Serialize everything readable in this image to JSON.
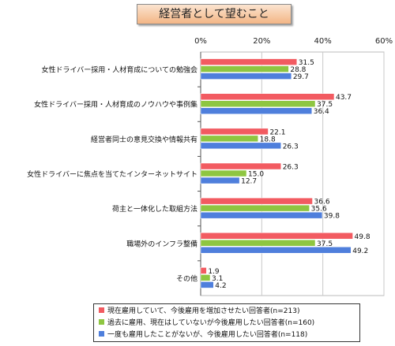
{
  "title": "経営者として望むこと",
  "chart_data": {
    "type": "bar",
    "orientation": "horizontal",
    "categories": [
      "女性ドライバー採用・人材育成についての勉強会",
      "女性ドライバー採用・人材育成のノウハウや事例集",
      "経営者同士の意見交換や情報共有",
      "女性ドライバーに焦点を当てたインターネットサイト",
      "荷主と一体化した取組方法",
      "職場外のインフラ整備",
      "その他"
    ],
    "series": [
      {
        "name": "現在雇用していて、今後雇用を増加させたい回答者(n=213)",
        "color": "#f25b61",
        "values": [
          31.5,
          43.7,
          22.1,
          26.3,
          36.6,
          49.8,
          1.9
        ]
      },
      {
        "name": "過去に雇用、現在はしていないが今後雇用したい回答者(n=160)",
        "color": "#8ec641",
        "values": [
          28.8,
          37.5,
          18.8,
          15.0,
          35.6,
          37.5,
          3.1
        ]
      },
      {
        "name": "一度も雇用したことがないが、今後雇用したい回答者(n=118)",
        "color": "#4f7fdc",
        "values": [
          29.7,
          36.4,
          26.3,
          12.7,
          39.8,
          49.2,
          4.2
        ]
      }
    ],
    "value_labels": [
      [
        "31.5",
        "43.7",
        "22.1",
        "26.3",
        "36.6",
        "49.8",
        "1.9"
      ],
      [
        "28.8",
        "37.5",
        "18.8",
        "15.0",
        "35.6",
        "37.5",
        "3.1"
      ],
      [
        "29.7",
        "36.4",
        "26.3",
        "12.7",
        "39.8",
        "49.2",
        "4.2"
      ]
    ],
    "xlim": [
      0,
      60
    ],
    "xticks": [
      "0%",
      "20%",
      "40%",
      "60%"
    ],
    "grid": true,
    "legend_position": "bottom-right"
  }
}
